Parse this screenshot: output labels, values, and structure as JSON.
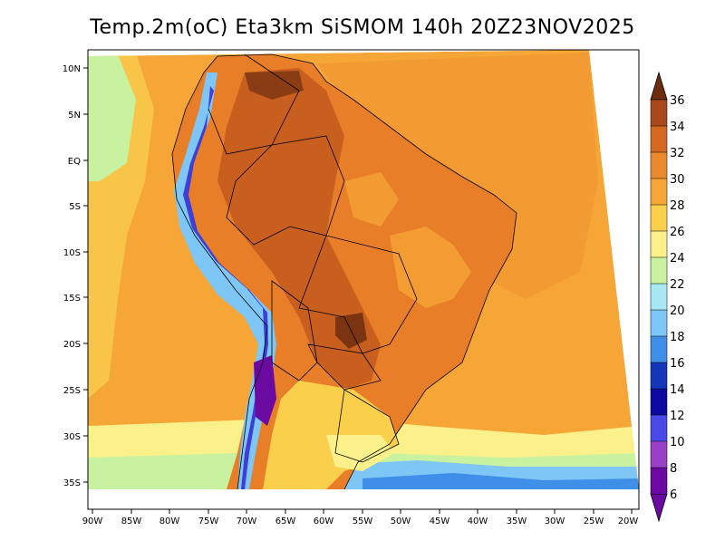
{
  "title": "Temp.2m(oC) Eta3km SiSMOM 140h 20Z23NOV2025",
  "lat_labels": [
    "10N",
    "5N",
    "EQ",
    "5S",
    "10S",
    "15S",
    "20S",
    "25S",
    "30S",
    "35S"
  ],
  "lon_labels": [
    "90W",
    "85W",
    "80W",
    "75W",
    "70W",
    "65W",
    "60W",
    "55W",
    "50W",
    "45W",
    "40W",
    "35W",
    "30W",
    "25W",
    "20W"
  ],
  "colorbar": {
    "labels": [
      "36",
      "34",
      "32",
      "30",
      "28",
      "26",
      "24",
      "22",
      "20",
      "18",
      "16",
      "14",
      "12",
      "10",
      "8",
      "6"
    ],
    "colors": [
      "#6e2e0e",
      "#a8491b",
      "#d46922",
      "#ea8a2e",
      "#f5a636",
      "#f9cf4c",
      "#fbf08a",
      "#c9f2a0",
      "#a8e8f5",
      "#7ec6f5",
      "#3f8ee8",
      "#1436b8",
      "#0a0aa0",
      "#4a4ae8",
      "#9a40c8",
      "#6a0aa0"
    ],
    "top_arrow_color": "#6e2e0e",
    "bottom_arrow_color": "#6a0aa0"
  }
}
